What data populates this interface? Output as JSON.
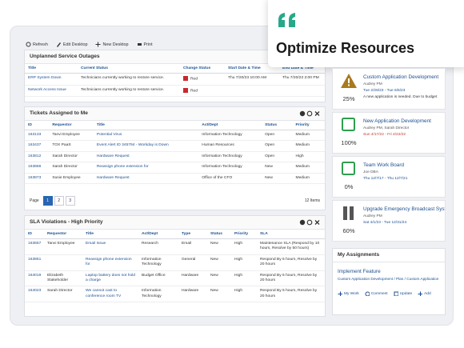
{
  "callout": {
    "title": "Optimize Resources"
  },
  "toolbar": [
    "Refresh",
    "Edit Desktop",
    "New Desktop",
    "Print"
  ],
  "outages": {
    "title": "Unplanned Service Outages",
    "headers": [
      "Title",
      "Current Status",
      "Change Status",
      "Start Date & Time",
      "End Date & Time"
    ],
    "rows": [
      [
        "ERP System Down",
        "Technicians currently working to restore service.",
        "Red",
        "Thu 7/20/23 10:00 AM",
        "Thu 7/20/23 2:00 PM"
      ],
      [
        "Network Access Issue",
        "Technicians currently working to restore service.",
        "Red",
        null,
        null
      ]
    ]
  },
  "tickets": {
    "title": "Tickets Assigned to Me",
    "headers": [
      "ID",
      "Requestor",
      "Title",
      "Act/Dept",
      "Status",
      "Priority"
    ],
    "rows": [
      [
        "163133",
        "Tanvi Employee",
        "Potential Virus",
        "Information Technology",
        "Open",
        "Medium"
      ],
      [
        "163437",
        "TOX PaaS",
        "Event Alert ID 345794 - Workday is Down",
        "Human Resources",
        "Open",
        "Medium"
      ],
      [
        "163812",
        "Sarah Director",
        "Hardware Request",
        "Information Technology",
        "Open",
        "High"
      ],
      [
        "163866",
        "Sarah Director",
        "Reassign phone extension for",
        "Information Technology",
        "New",
        "Medium"
      ],
      [
        "163873",
        "Susie Employee",
        "Hardware Request",
        "Office of the CFO",
        "New",
        "Medium"
      ]
    ],
    "page_label": "Page",
    "pages": [
      "1",
      "2",
      "3"
    ],
    "items": "12 Items"
  },
  "sla": {
    "title": "SLA Violations - High Priority",
    "headers": [
      "ID",
      "Requestor",
      "Title",
      "Act/Dept",
      "Type",
      "Status",
      "Priority",
      "SLA"
    ],
    "rows": [
      [
        "163657",
        "Tanvi Employee",
        "Email Issue",
        "Research",
        "Email",
        "New",
        "High",
        "Maintenance SLA (Respond by 10 hours, Resolve by 50 hours)"
      ],
      [
        "163851",
        null,
        "Reassign phone extension for",
        "Information Technology",
        "General",
        "New",
        "High",
        "Respond By 5 hours, Resolve by 20 hours"
      ],
      [
        "164019",
        "Elizabeth Stakeholder",
        "Laptop battery does not hold a charge",
        "Budget Office",
        "Hardware",
        "New",
        "High",
        "Respond By 5 hours, Resolve by 20 hours"
      ],
      [
        "164023",
        "Sarah Director",
        "We cannot cast to conference room TV",
        "Information Technology",
        "Hardware",
        "New",
        "High",
        "Respond By 5 hours, Resolve by 20 hours"
      ]
    ]
  },
  "projects": [
    {
      "percent": "25%",
      "title": "Custom Application Development",
      "people": "Audrey PM",
      "dates": "Tue 2/28/23 - Tue 6/6/23",
      "note": "A new application is needed. Due to budget"
    },
    {
      "percent": "100%",
      "title": "New Application Development",
      "people": "Audrey PM, Sarah Director",
      "dates": "Sun 4/17/22 - Fri 4/22/22"
    },
    {
      "percent": "0%",
      "title": "Team Work Board",
      "people": "Joe DBA",
      "dates": "Thu 12/7/17 - Thu 12/7/21"
    },
    {
      "percent": "60%",
      "title": "Upgrade Emergency Broadcast System",
      "people": "Audrey PM",
      "dates": "Sat 4/1/23 - Tue 12/31/24"
    }
  ],
  "assignments": {
    "title": "My Assignments",
    "item": "Implement Feature",
    "path": "Custom Application Development / Plan / Custom Application",
    "actions": [
      "My Work",
      "Comment",
      "Update",
      "Add"
    ]
  }
}
